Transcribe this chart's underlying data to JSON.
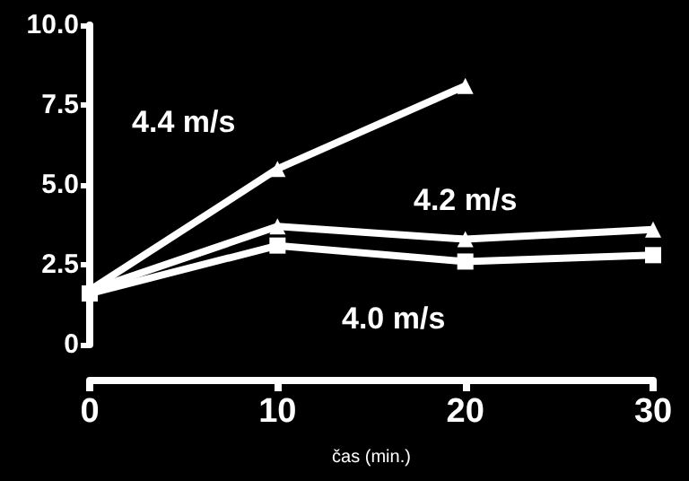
{
  "chart_data": {
    "type": "line",
    "xlabel": "čas (min.)",
    "xlim": [
      0,
      30
    ],
    "xticks": [
      0,
      10,
      20,
      30
    ],
    "ylim": [
      0,
      10
    ],
    "yticks": [
      0,
      2.5,
      {
        "value": 5,
        "label": "5.0"
      },
      7.5,
      {
        "value": 10,
        "label": "10.0"
      }
    ],
    "grid": false,
    "line_style": "solid",
    "series": [
      {
        "name": "4.4 m/s",
        "color": "#ffffff",
        "marker": "triangle",
        "x": [
          0,
          10,
          20
        ],
        "values": [
          1.7,
          5.5,
          8.1
        ]
      },
      {
        "name": "4.2 m/s",
        "color": "#ffffff",
        "marker": "triangle",
        "x": [
          0,
          10,
          20,
          30
        ],
        "values": [
          1.7,
          3.7,
          3.3,
          3.6
        ]
      },
      {
        "name": "4.0 m/s",
        "color": "#ffffff",
        "marker": "square",
        "x": [
          0,
          10,
          20,
          30
        ],
        "values": [
          1.6,
          3.1,
          2.6,
          2.8
        ]
      }
    ]
  }
}
